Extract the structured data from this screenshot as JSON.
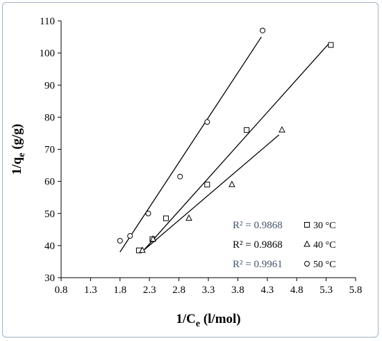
{
  "chart_data": {
    "type": "scatter",
    "title": "",
    "xlabel_main": "1/C",
    "xlabel_sub": "e",
    "xlabel_unit": " (l/mol)",
    "ylabel_main": "1/q",
    "ylabel_sub": "e",
    "ylabel_unit": " (g/g)",
    "xlim": [
      0.8,
      5.8
    ],
    "ylim": [
      30,
      110
    ],
    "xticks": [
      "0.8",
      "1.3",
      "1.8",
      "2.3",
      "2.8",
      "3.3",
      "3.8",
      "4.3",
      "4.8",
      "5.3",
      "5.8"
    ],
    "yticks": [
      "30",
      "40",
      "50",
      "60",
      "70",
      "80",
      "90",
      "100",
      "110"
    ],
    "grid": false,
    "legend_position": "bottom-right",
    "series": [
      {
        "name": "30 °C",
        "marker": "square",
        "r2_label": "R² = 0.9868",
        "r2_color": "#44546a",
        "x": [
          2.12,
          2.35,
          2.58,
          3.28,
          3.95,
          5.38
        ],
        "y": [
          38.5,
          42,
          48.5,
          59,
          76,
          102.5
        ],
        "fit": [
          [
            2.2,
            38.5
          ],
          [
            5.35,
            103
          ]
        ]
      },
      {
        "name": "40 °C",
        "marker": "triangle",
        "r2_label": "R² = 0.9868",
        "r2_color": "#000000",
        "x": [
          2.18,
          2.36,
          2.97,
          3.7,
          4.55
        ],
        "y": [
          38.5,
          42,
          48.5,
          59,
          76
        ],
        "fit": [
          [
            2.2,
            38.5
          ],
          [
            4.5,
            74.5
          ]
        ]
      },
      {
        "name": "50 °C",
        "marker": "circle",
        "r2_label": "R² = 0.9961",
        "r2_color": "#44546a",
        "x": [
          1.8,
          1.97,
          2.28,
          2.82,
          3.28,
          4.22
        ],
        "y": [
          41.5,
          43,
          50,
          61.5,
          78.5,
          107
        ],
        "fit": [
          [
            1.8,
            38
          ],
          [
            4.2,
            105
          ]
        ]
      }
    ]
  }
}
